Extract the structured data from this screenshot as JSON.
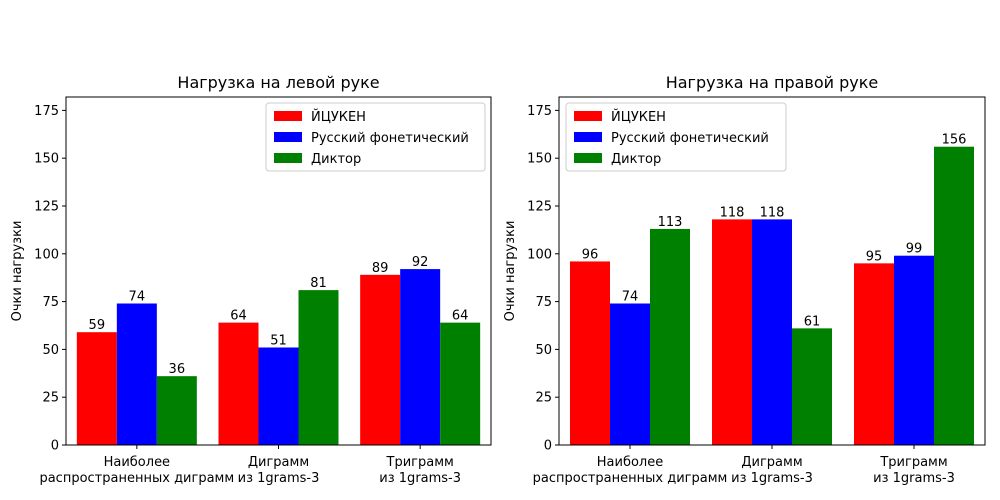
{
  "chart_data": [
    {
      "type": "bar",
      "title": "Нагрузка на левой руке",
      "xlabel": "",
      "ylabel": "Очки нагрузки",
      "ylim": [
        0,
        182
      ],
      "yticks": [
        0,
        25,
        50,
        75,
        100,
        125,
        150,
        175
      ],
      "categories": [
        "Наиболее\nраспространенных диграмм",
        "Диграмм\nиз 1grams-3",
        "Триграмм\nиз 1grams-3"
      ],
      "series": [
        {
          "name": "ЙЦУКЕН",
          "color": "#ff0000",
          "values": [
            59,
            64,
            89
          ]
        },
        {
          "name": "Русский фонетический",
          "color": "#0000ff",
          "values": [
            74,
            51,
            92
          ]
        },
        {
          "name": "Диктор",
          "color": "#008000",
          "values": [
            36,
            81,
            64
          ]
        }
      ],
      "legend": "top-right",
      "grid": false
    },
    {
      "type": "bar",
      "title": "Нагрузка на правой руке",
      "xlabel": "",
      "ylabel": "Очки нагрузки",
      "ylim": [
        0,
        182
      ],
      "yticks": [
        0,
        25,
        50,
        75,
        100,
        125,
        150,
        175
      ],
      "categories": [
        "Наиболее\nраспространенных диграмм",
        "Диграмм\nиз 1grams-3",
        "Триграмм\nиз 1grams-3"
      ],
      "series": [
        {
          "name": "ЙЦУКЕН",
          "color": "#ff0000",
          "values": [
            96,
            118,
            95
          ]
        },
        {
          "name": "Русский фонетический",
          "color": "#0000ff",
          "values": [
            74,
            118,
            99
          ]
        },
        {
          "name": "Диктор",
          "color": "#008000",
          "values": [
            113,
            61,
            156
          ]
        }
      ],
      "legend": "top-left",
      "grid": false
    }
  ]
}
